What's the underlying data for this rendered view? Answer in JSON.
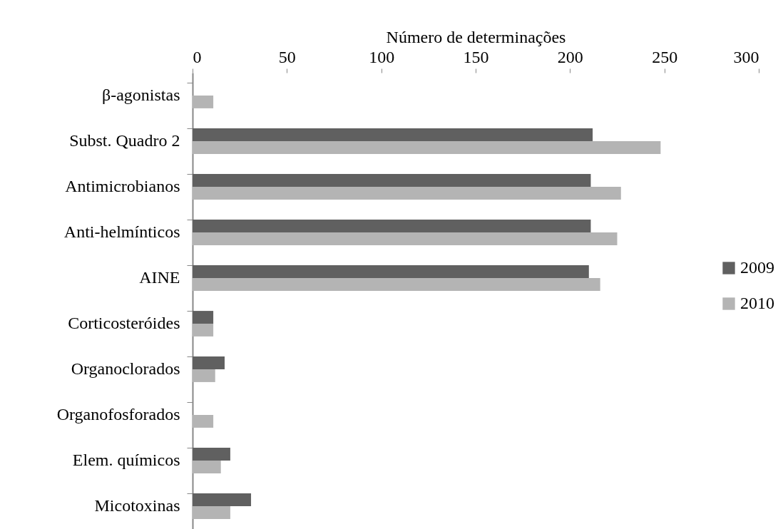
{
  "chart_data": {
    "type": "bar",
    "orientation": "horizontal",
    "xlabel": "Número de determinações",
    "categories": [
      "β-agonistas",
      "Subst. Quadro 2",
      "Antimicrobianos",
      "Anti-helmínticos",
      "AINE",
      "Corticosteróides",
      "Organoclorados",
      "Organofosforados",
      "Elem. químicos",
      "Micotoxinas"
    ],
    "series": [
      {
        "name": "2009",
        "color": "#606060",
        "values": [
          null,
          212,
          211,
          211,
          210,
          11,
          17,
          null,
          20,
          31
        ]
      },
      {
        "name": "2010",
        "color": "#b4b4b4",
        "values": [
          11,
          248,
          227,
          225,
          216,
          11,
          12,
          11,
          15,
          20
        ]
      }
    ],
    "xlim": [
      0,
      300
    ],
    "xticks": [
      0,
      50,
      100,
      150,
      200,
      250,
      300
    ],
    "legend": "right",
    "grid": false
  }
}
